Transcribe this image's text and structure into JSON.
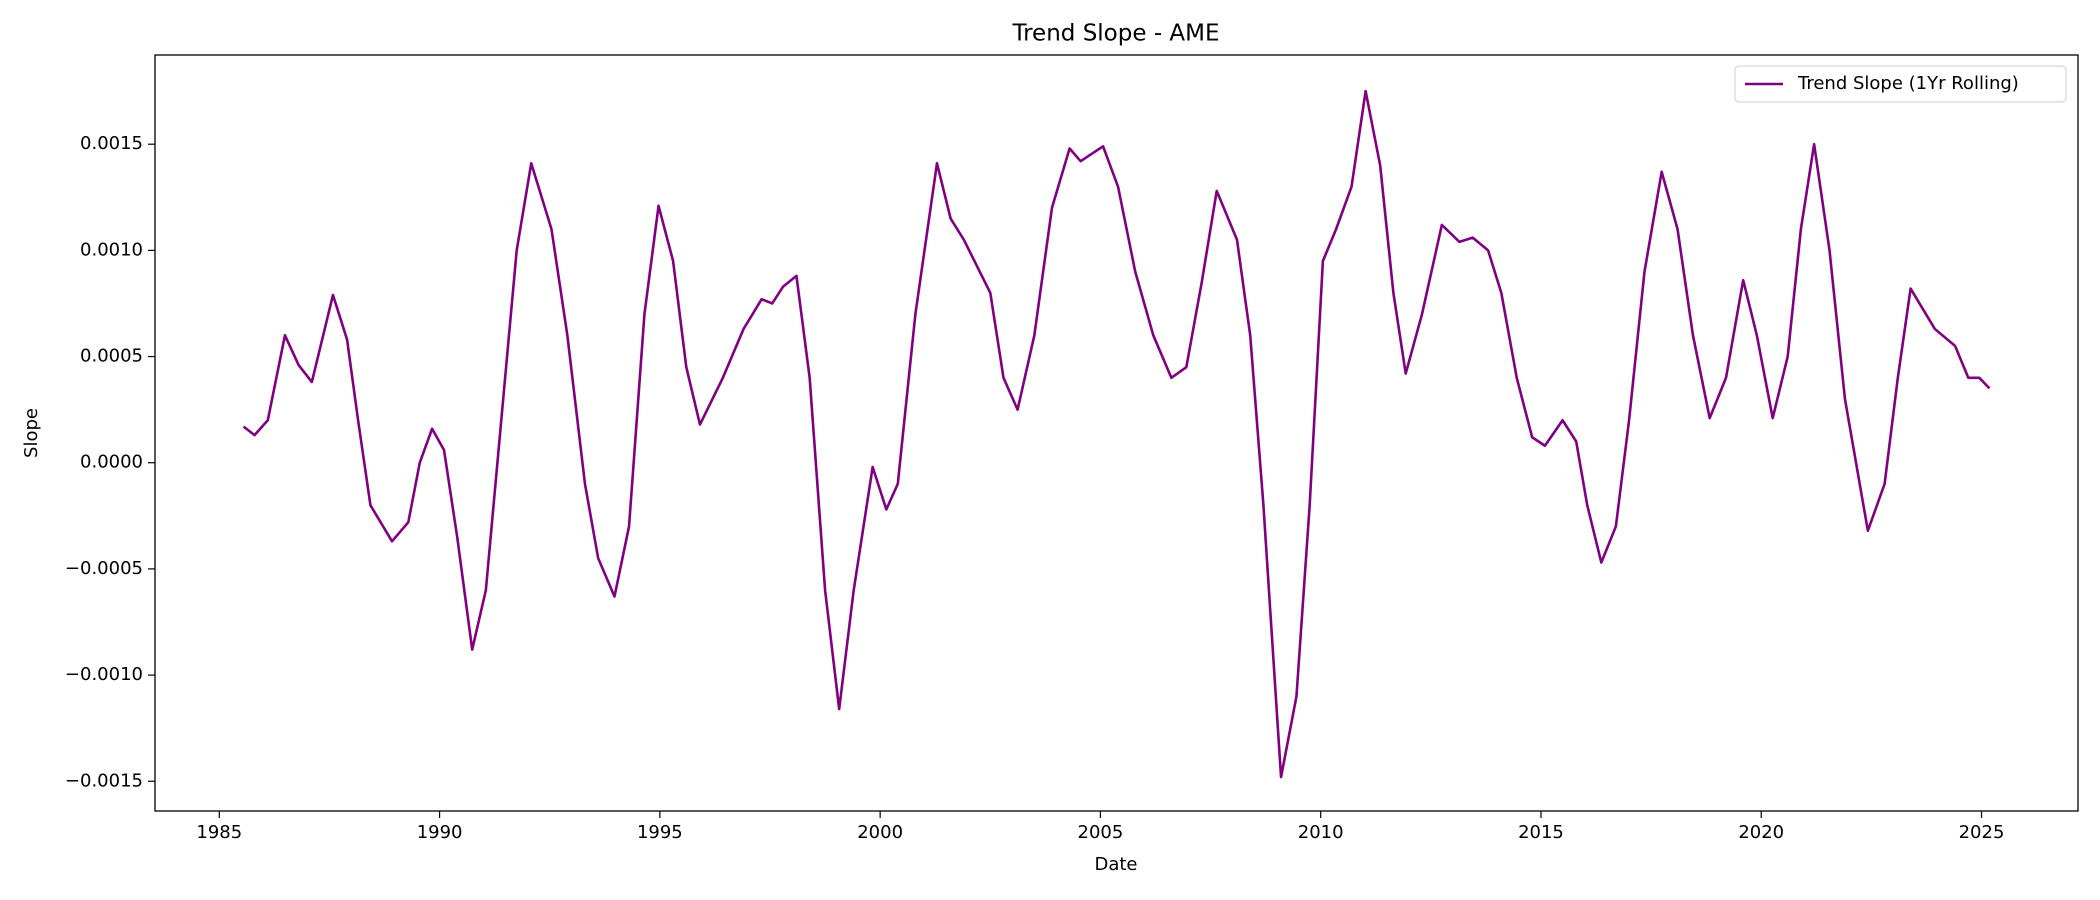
{
  "chart_data": {
    "type": "line",
    "title": "Trend Slope - AME",
    "xlabel": "Date",
    "ylabel": "Slope",
    "series": [
      {
        "name": "Trend Slope (1Yr Rolling)",
        "color": "#800080",
        "x": [
          1985.55,
          1985.8,
          1986.1,
          1986.49,
          1986.8,
          1987.1,
          1987.58,
          1987.9,
          1988.15,
          1988.43,
          1988.92,
          1989.29,
          1989.55,
          1989.83,
          1990.1,
          1990.4,
          1990.74,
          1991.05,
          1991.4,
          1991.75,
          1992.08,
          1992.54,
          1992.9,
          1993.3,
          1993.6,
          1993.97,
          1994.3,
          1994.65,
          1994.97,
          1995.3,
          1995.6,
          1995.91,
          1996.43,
          1996.9,
          1997.31,
          1997.55,
          1997.8,
          1998.1,
          1998.4,
          1998.75,
          1999.07,
          1999.4,
          1999.83,
          2000.14,
          2000.4,
          2000.8,
          2001.29,
          2001.6,
          2001.9,
          2002.5,
          2002.8,
          2003.12,
          2003.5,
          2003.9,
          2004.3,
          2004.55,
          2005.06,
          2005.4,
          2005.79,
          2006.2,
          2006.61,
          2006.95,
          2007.3,
          2007.64,
          2008.1,
          2008.4,
          2008.7,
          2009.1,
          2009.45,
          2009.75,
          2010.05,
          2010.35,
          2010.7,
          2011.02,
          2011.35,
          2011.65,
          2011.93,
          2012.3,
          2012.75,
          2013.15,
          2013.45,
          2013.8,
          2014.1,
          2014.45,
          2014.8,
          2015.09,
          2015.49,
          2015.8,
          2016.05,
          2016.37,
          2016.7,
          2017.0,
          2017.35,
          2017.74,
          2018.1,
          2018.45,
          2018.83,
          2019.2,
          2019.59,
          2019.9,
          2020.26,
          2020.6,
          2020.9,
          2021.2,
          2021.55,
          2021.9,
          2022.42,
          2022.8,
          2023.1,
          2023.39,
          2023.94,
          2024.4,
          2024.7,
          2024.95,
          2025.18
        ],
        "values": [
          0.00017,
          0.00013,
          0.0002,
          0.0006,
          0.00046,
          0.00038,
          0.00079,
          0.00058,
          0.0002,
          -0.0002,
          -0.00037,
          -0.00028,
          0.0,
          0.00016,
          6e-05,
          -0.00035,
          -0.00088,
          -0.0006,
          0.0002,
          0.001,
          0.00141,
          0.0011,
          0.0006,
          -0.0001,
          -0.00045,
          -0.00063,
          -0.0003,
          0.0007,
          0.00121,
          0.00095,
          0.00045,
          0.00018,
          0.0004,
          0.00063,
          0.00077,
          0.00075,
          0.00083,
          0.00088,
          0.0004,
          -0.0006,
          -0.00116,
          -0.0006,
          -2e-05,
          -0.00022,
          -0.0001,
          0.0007,
          0.00141,
          0.00115,
          0.00105,
          0.0008,
          0.0004,
          0.00025,
          0.0006,
          0.0012,
          0.00148,
          0.00142,
          0.00149,
          0.0013,
          0.0009,
          0.0006,
          0.0004,
          0.00045,
          0.00085,
          0.00128,
          0.00105,
          0.0006,
          -0.0002,
          -0.00148,
          -0.0011,
          -0.0002,
          0.00095,
          0.0011,
          0.0013,
          0.00175,
          0.0014,
          0.0008,
          0.00042,
          0.0007,
          0.00112,
          0.00104,
          0.00106,
          0.001,
          0.0008,
          0.0004,
          0.00012,
          8e-05,
          0.0002,
          0.0001,
          -0.0002,
          -0.00047,
          -0.0003,
          0.0002,
          0.0009,
          0.00137,
          0.0011,
          0.0006,
          0.00021,
          0.0004,
          0.00086,
          0.0006,
          0.00021,
          0.0005,
          0.0011,
          0.0015,
          0.001,
          0.0003,
          -0.00032,
          -0.0001,
          0.0004,
          0.00082,
          0.00063,
          0.00055,
          0.0004,
          0.0004,
          0.00035
        ]
      }
    ],
    "xlim": [
      1983.54,
      2027.19
    ],
    "xticks": [
      1985,
      1990,
      1995,
      2000,
      2005,
      2010,
      2015,
      2020,
      2025
    ],
    "ylim": [
      -0.00164,
      0.00192
    ],
    "yticks": [
      {
        "value": -0.0015,
        "label": "−0.0015"
      },
      {
        "value": -0.001,
        "label": "−0.0010"
      },
      {
        "value": -0.0005,
        "label": "−0.0005"
      },
      {
        "value": 0,
        "label": "0.0000"
      },
      0.0005,
      {
        "value": 0.001,
        "label": "0.0010"
      },
      0.0015
    ],
    "legend": "upper right",
    "grid": false
  }
}
